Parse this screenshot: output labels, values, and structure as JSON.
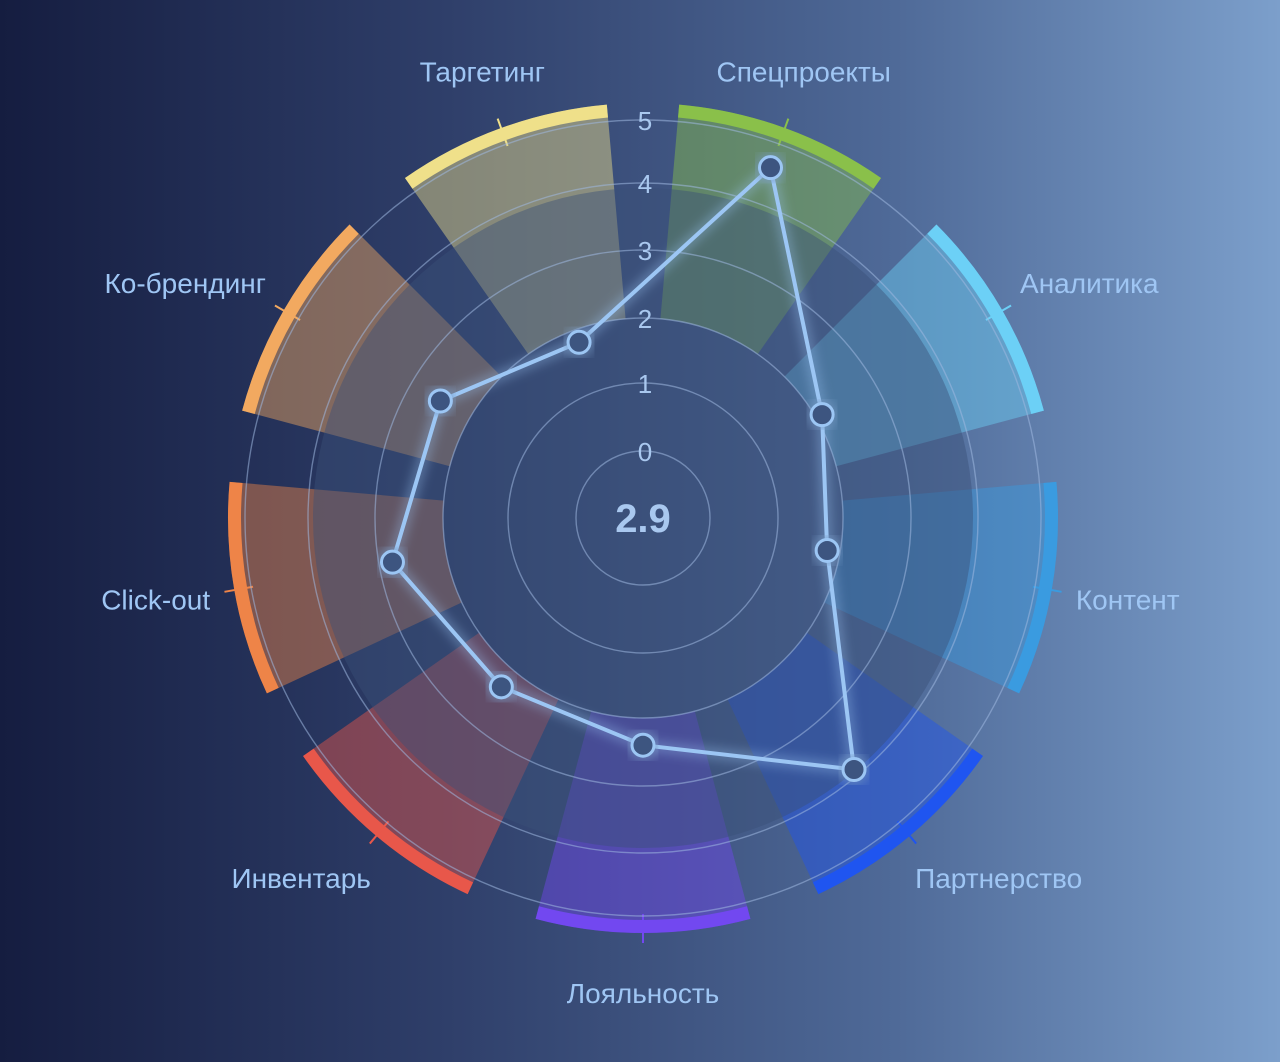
{
  "chart_data": {
    "type": "radar",
    "title": "",
    "center_value": "2.9",
    "rlim": [
      0,
      5
    ],
    "ticks": [
      0,
      1,
      2,
      3,
      4,
      5
    ],
    "categories": [
      {
        "name": "Спецпроекты",
        "color": "#8ac04a"
      },
      {
        "name": "Аналитика",
        "color": "#6cd0f6"
      },
      {
        "name": "Контент",
        "color": "#3a9be0"
      },
      {
        "name": "Партнерство",
        "color": "#1f55f0"
      },
      {
        "name": "Лояльность",
        "color": "#7248f0"
      },
      {
        "name": "Инвентарь",
        "color": "#e8574a"
      },
      {
        "name": "Click-out",
        "color": "#ee8448"
      },
      {
        "name": "Ко-брендинг",
        "color": "#f2a960"
      },
      {
        "name": "Таргетинг",
        "color": "#efe08a"
      }
    ],
    "series": [
      {
        "values": [
          4.6,
          2.1,
          1.8,
          3.9,
          2.4,
          2.3,
          2.8,
          2.5,
          1.8
        ]
      }
    ],
    "grid": true,
    "colors": {
      "line": "#9cc6f4",
      "point": "#3e5580",
      "grid": "#9fb8e0"
    }
  }
}
